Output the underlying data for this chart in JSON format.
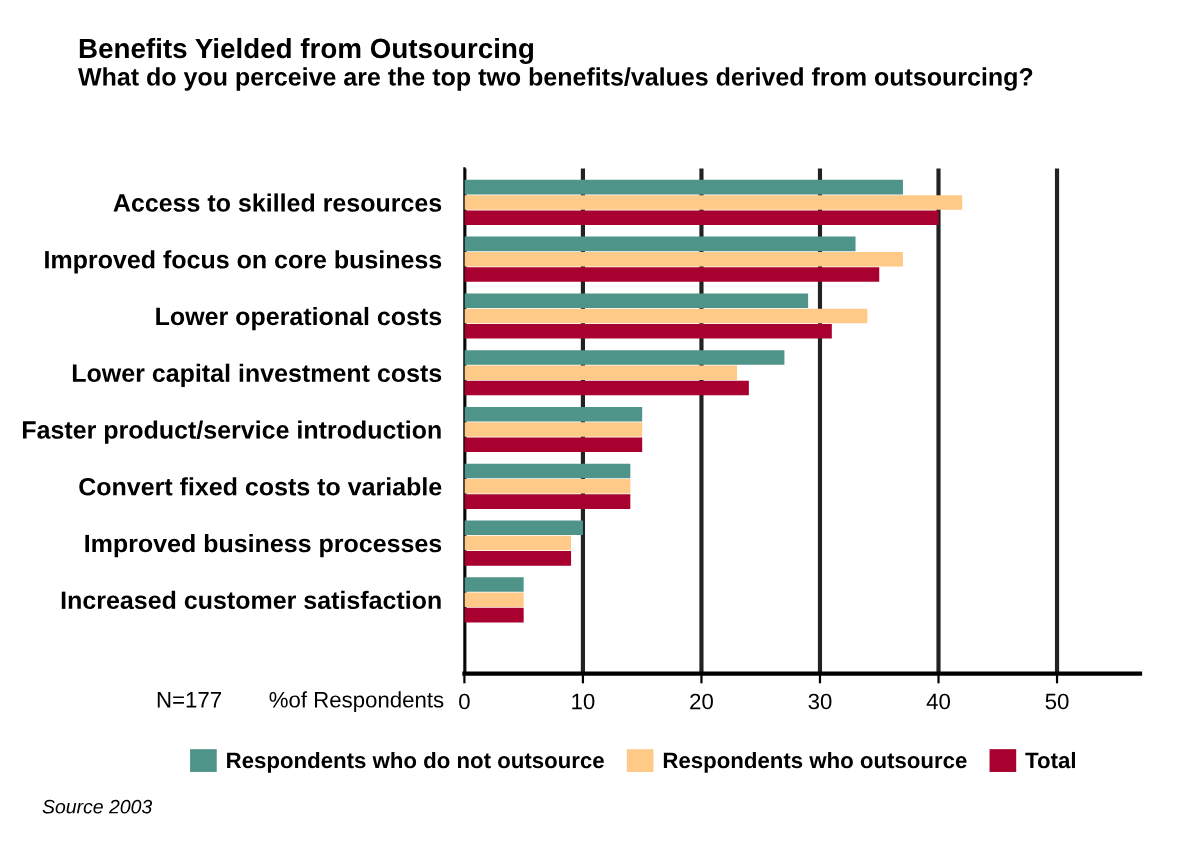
{
  "chart_data": {
    "type": "bar",
    "orientation": "horizontal",
    "title": "Benefits Yielded from Outsourcing",
    "subtitle": "What do you perceive are the top two benefits/values derived from outsourcing?",
    "xlabel": "%of Respondents",
    "categories": [
      "Access to skilled resources",
      "Improved focus on core business",
      "Lower operational costs",
      "Lower capital investment costs",
      "Faster product/service introduction",
      "Convert fixed costs to variable",
      "Improved business processes",
      "Increased customer satisfaction"
    ],
    "series": [
      {
        "name": "Respondents who do not outsource",
        "color": "#4e9488",
        "values": [
          37,
          33,
          29,
          27,
          15,
          14,
          10,
          5
        ]
      },
      {
        "name": "Respondents who outsource",
        "color": "#ffc987",
        "values": [
          42,
          37,
          34,
          23,
          15,
          14,
          9,
          5
        ]
      },
      {
        "name": "Total",
        "color": "#a8002f",
        "values": [
          40,
          35,
          31,
          24,
          15,
          14,
          9,
          5
        ]
      }
    ],
    "xlim": [
      0,
      57
    ],
    "xticks": [
      0,
      10,
      20,
      30,
      40,
      50
    ],
    "grid": "x",
    "legend": "bottom",
    "annotations": [
      "N=177",
      "Source 2003"
    ]
  }
}
